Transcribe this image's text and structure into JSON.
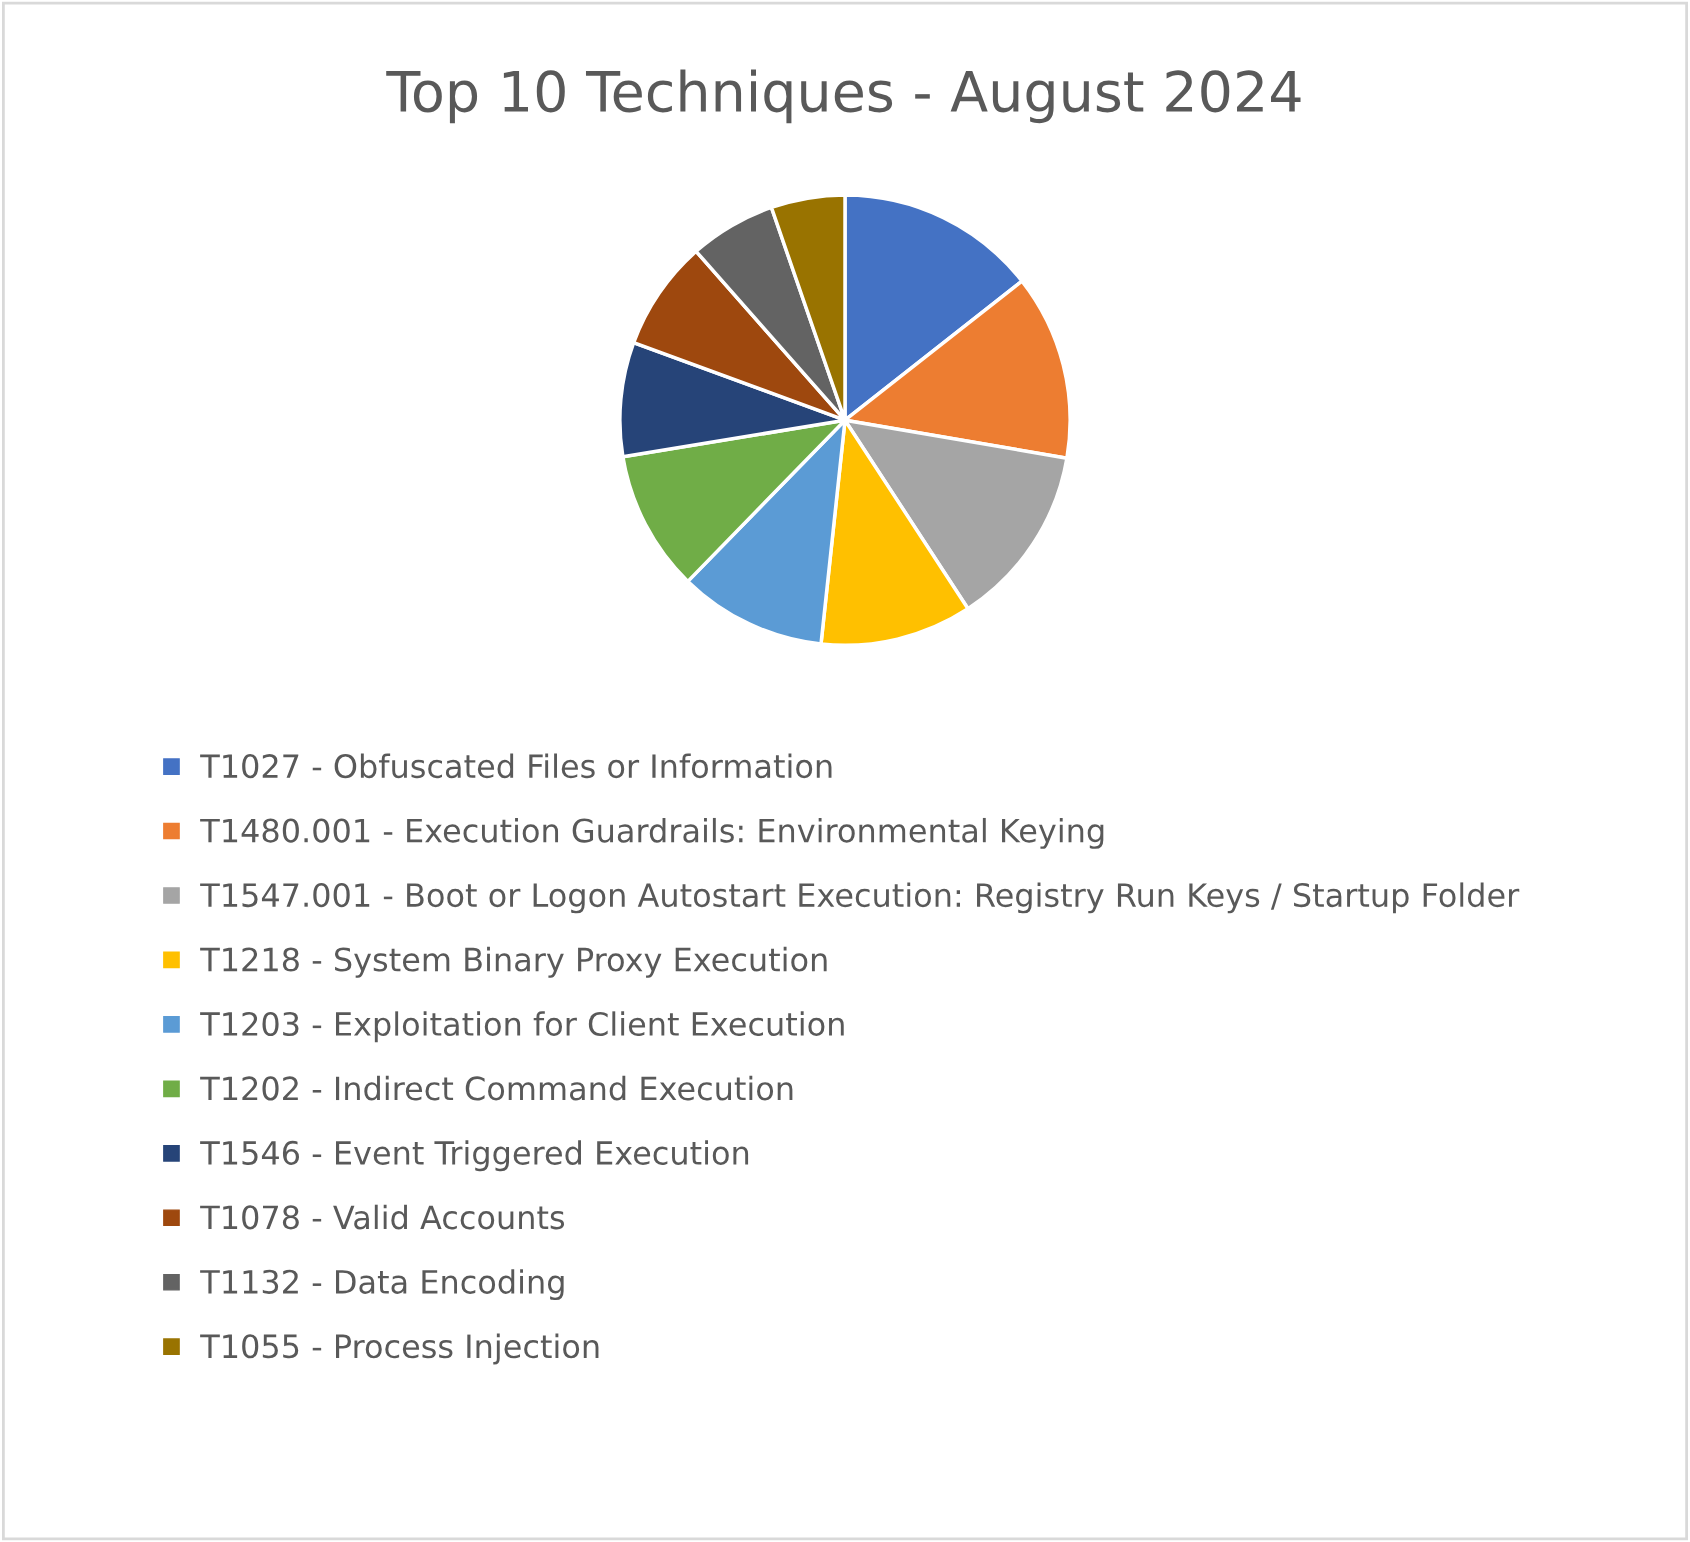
{
  "chart_data": {
    "type": "pie",
    "title": "Top 10 Techniques - August 2024",
    "categories": [
      "T1027 - Obfuscated Files or Information",
      "T1480.001 - Execution Guardrails: Environmental Keying",
      "T1547.001 - Boot or Logon Autostart Execution: Registry Run Keys / Startup Folder",
      "T1218 - System Binary Proxy Execution",
      "T1203 - Exploitation for Client Execution",
      "T1202 - Indirect Command Execution",
      "T1546 - Event Triggered Execution",
      "T1078 - Valid Accounts",
      "T1132 - Data Encoding",
      "T1055 - Process Injection"
    ],
    "values": [
      14.4,
      13.3,
      13.1,
      10.9,
      10.6,
      10.1,
      8.2,
      7.9,
      6.2,
      5.3
    ],
    "colors": [
      "#4472c4",
      "#ed7d31",
      "#a5a5a5",
      "#ffc000",
      "#5b9bd5",
      "#70ad47",
      "#264478",
      "#9e480e",
      "#636363",
      "#997300"
    ],
    "legend": "bottom"
  }
}
